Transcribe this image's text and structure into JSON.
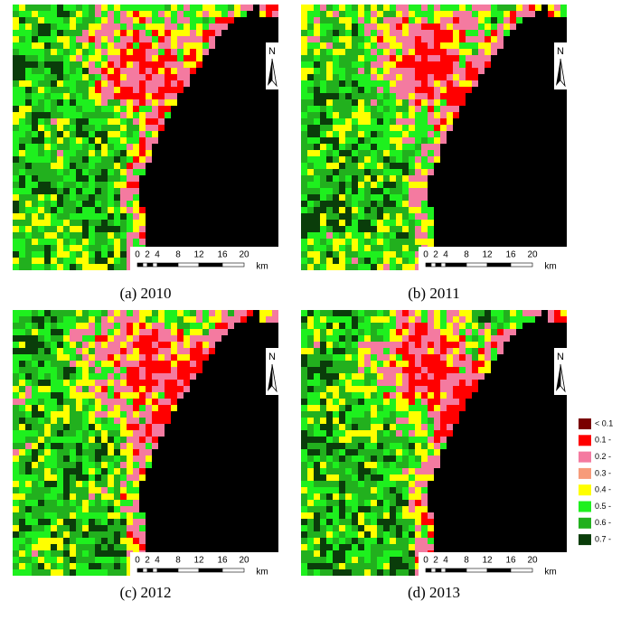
{
  "panels": [
    {
      "caption": "(a) 2010"
    },
    {
      "caption": "(b) 2011"
    },
    {
      "caption": "(c) 2012"
    },
    {
      "caption": "(d) 2013"
    }
  ],
  "scale_bar": {
    "labels": [
      "0",
      "2",
      "4",
      "8",
      "12",
      "16",
      "20"
    ],
    "unit": "km"
  },
  "north": "N",
  "legend": [
    {
      "label": "< 0.1",
      "color": "#7a0000"
    },
    {
      "label": "0.1 -",
      "color": "#ff0000"
    },
    {
      "label": "0.2 -",
      "color": "#f47aa0"
    },
    {
      "label": "0.3 -",
      "color": "#f79b7a"
    },
    {
      "label": "0.4 -",
      "color": "#ffff00"
    },
    {
      "label": "0.5 -",
      "color": "#1ef01e"
    },
    {
      "label": "0.6 -",
      "color": "#22b01e"
    },
    {
      "label": "0.7 -",
      "color": "#0a3d0a"
    }
  ]
}
